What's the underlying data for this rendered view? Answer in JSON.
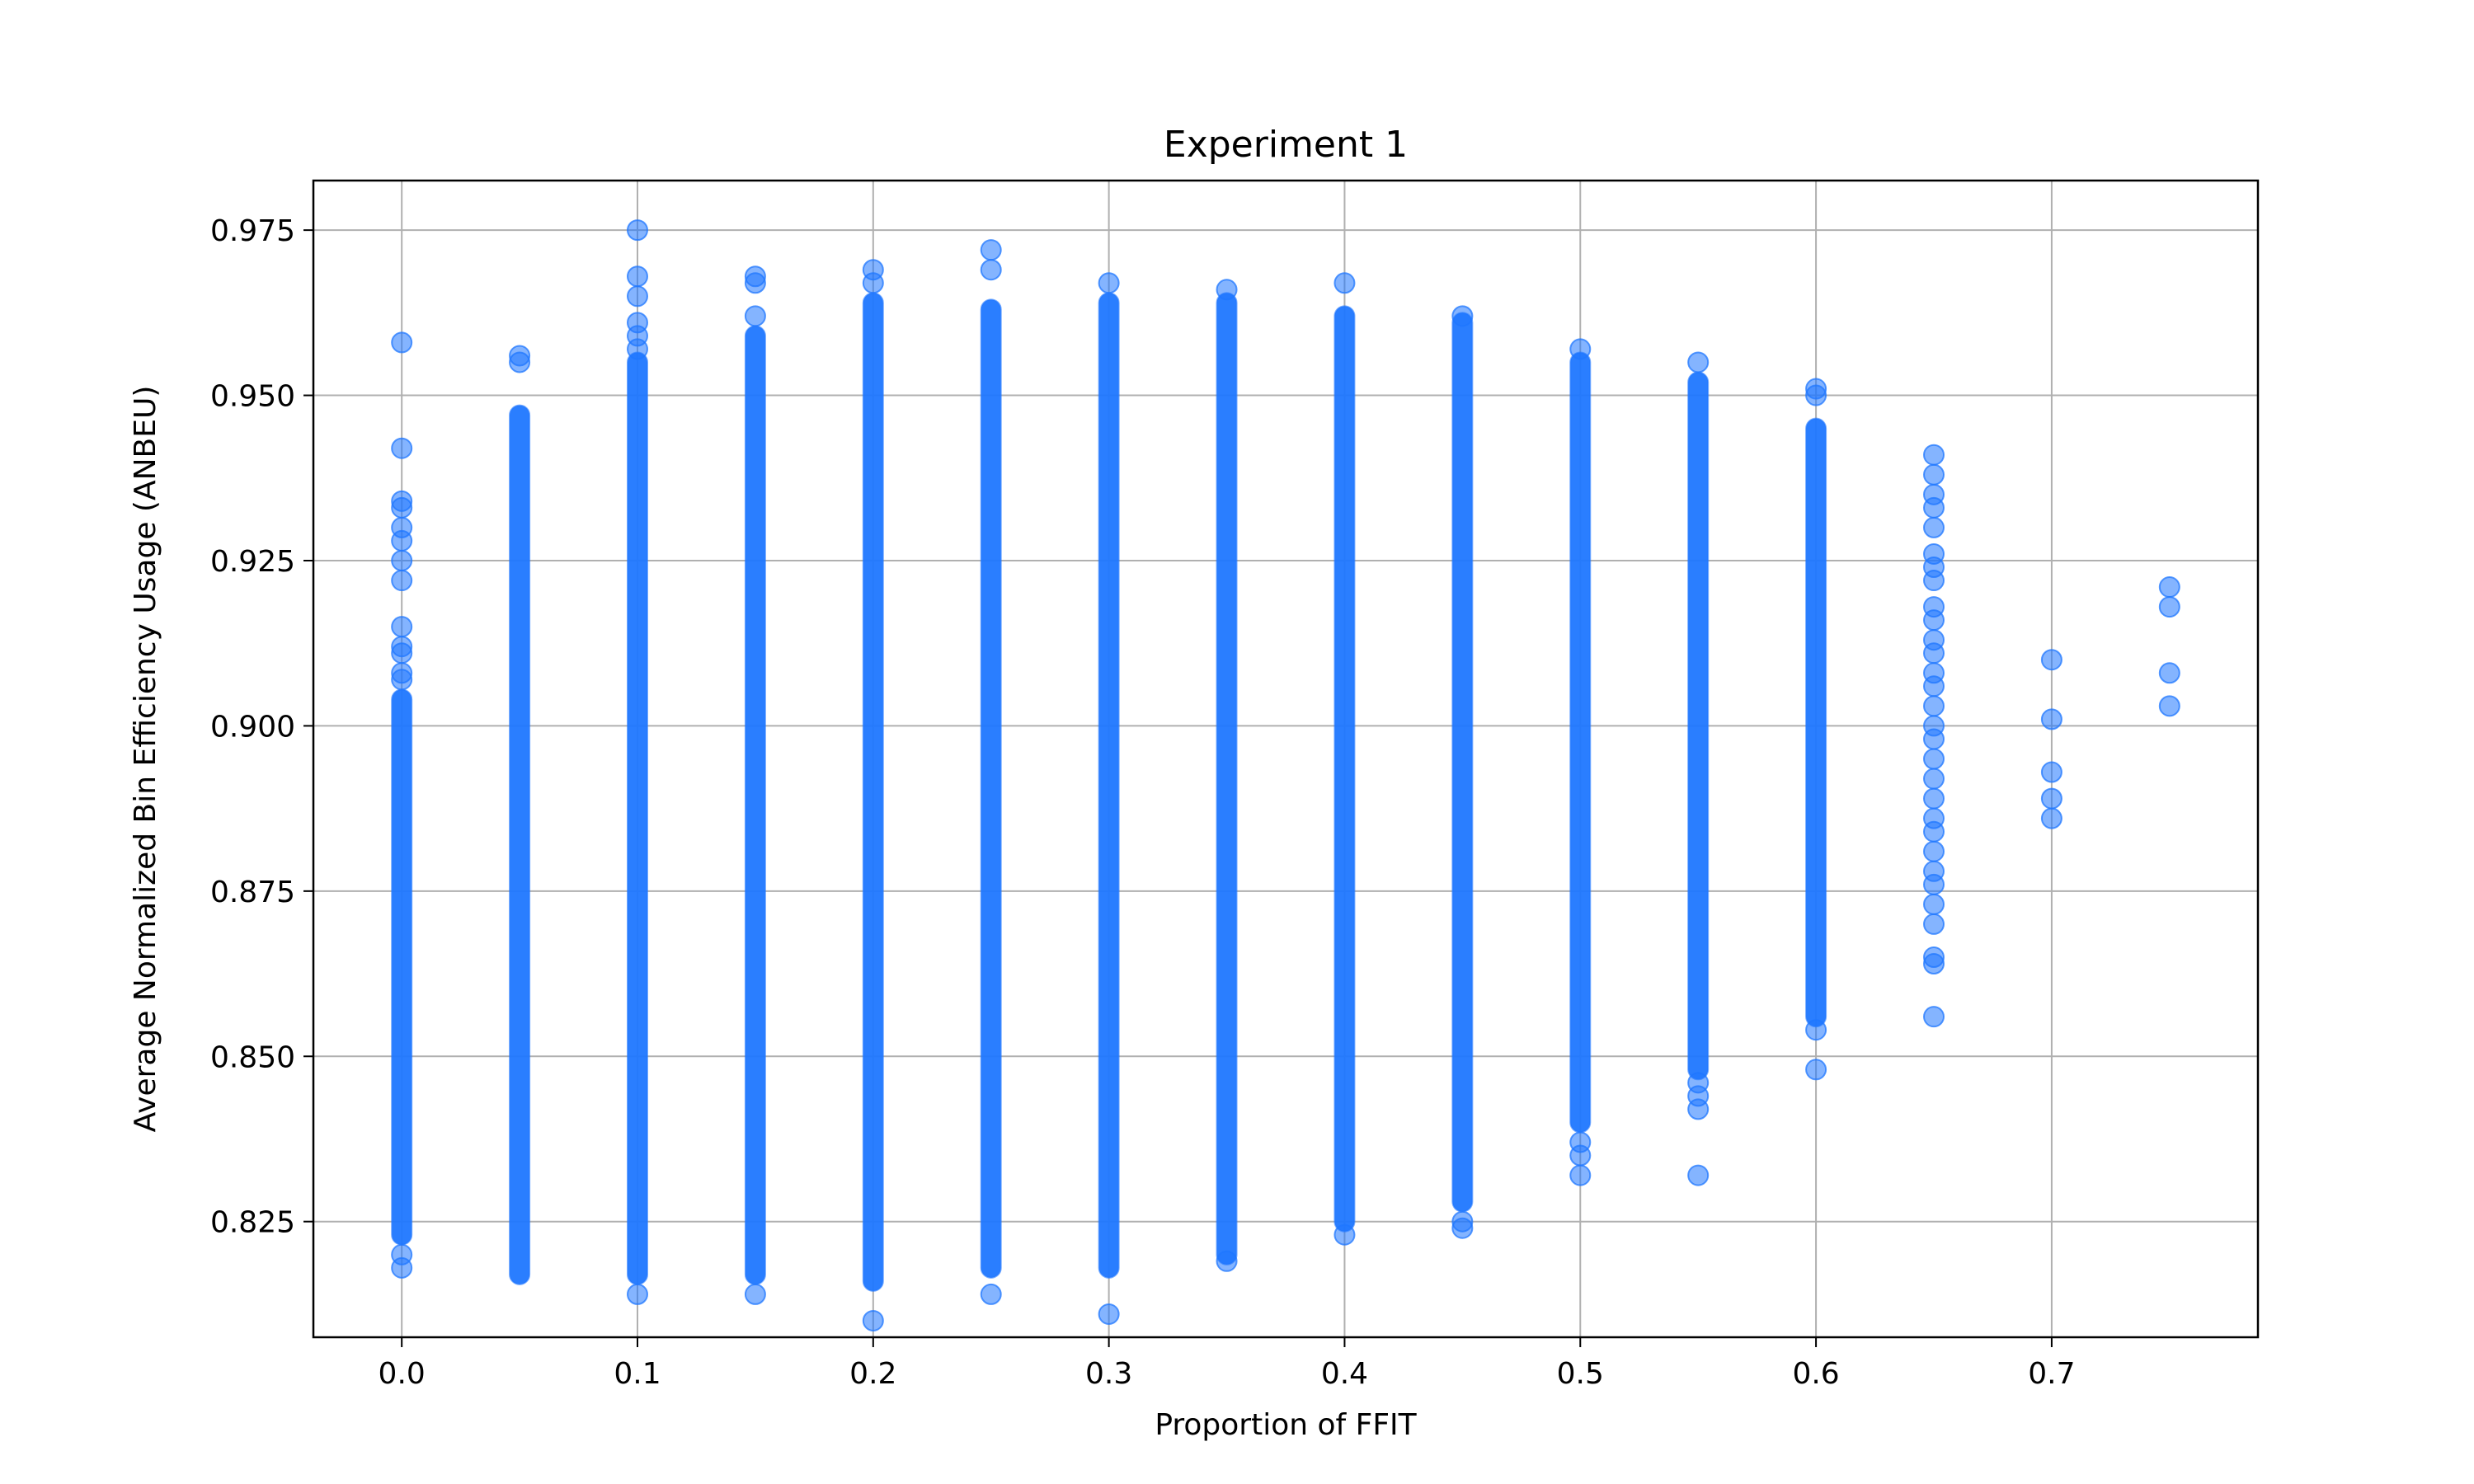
{
  "chart_data": {
    "type": "scatter",
    "title": "Experiment 1",
    "xlabel": "Proportion of FFIT",
    "ylabel": "Average Normalized Bin Efficiency Usage (ANBEU)",
    "xlim": [
      -0.0375,
      0.7875
    ],
    "ylim": [
      0.8075,
      0.9825
    ],
    "xticks": [
      "0.0",
      "0.1",
      "0.2",
      "0.3",
      "0.4",
      "0.5",
      "0.6",
      "0.7"
    ],
    "xtick_values": [
      0.0,
      0.1,
      0.2,
      0.3,
      0.4,
      0.5,
      0.6,
      0.7
    ],
    "yticks": [
      "0.825",
      "0.850",
      "0.875",
      "0.900",
      "0.925",
      "0.950",
      "0.975"
    ],
    "ytick_values": [
      0.825,
      0.85,
      0.875,
      0.9,
      0.925,
      0.95,
      0.975
    ],
    "grid": true,
    "marker_color": "#1f77ff",
    "marker_alpha": 0.55,
    "columns": [
      {
        "x": 0.0,
        "range": [
          0.823,
          0.904
        ],
        "points": [
          0.958,
          0.942,
          0.934,
          0.933,
          0.93,
          0.928,
          0.925,
          0.922,
          0.915,
          0.912,
          0.911,
          0.908,
          0.907,
          0.82,
          0.818
        ]
      },
      {
        "x": 0.05,
        "range": [
          0.817,
          0.947
        ],
        "points": [
          0.956,
          0.955
        ]
      },
      {
        "x": 0.1,
        "range": [
          0.817,
          0.955
        ],
        "points": [
          0.975,
          0.968,
          0.965,
          0.961,
          0.959,
          0.957,
          0.814
        ]
      },
      {
        "x": 0.15,
        "range": [
          0.817,
          0.959
        ],
        "points": [
          0.968,
          0.967,
          0.962,
          0.814
        ]
      },
      {
        "x": 0.2,
        "range": [
          0.816,
          0.964
        ],
        "points": [
          0.969,
          0.967,
          0.81
        ]
      },
      {
        "x": 0.25,
        "range": [
          0.818,
          0.963
        ],
        "points": [
          0.972,
          0.969,
          0.814
        ]
      },
      {
        "x": 0.3,
        "range": [
          0.818,
          0.964
        ],
        "points": [
          0.967,
          0.811
        ]
      },
      {
        "x": 0.35,
        "range": [
          0.82,
          0.964
        ],
        "points": [
          0.966,
          0.819
        ]
      },
      {
        "x": 0.4,
        "range": [
          0.825,
          0.962
        ],
        "points": [
          0.967,
          0.823
        ]
      },
      {
        "x": 0.45,
        "range": [
          0.828,
          0.961
        ],
        "points": [
          0.962,
          0.825,
          0.824
        ]
      },
      {
        "x": 0.5,
        "range": [
          0.84,
          0.955
        ],
        "points": [
          0.957,
          0.837,
          0.835,
          0.832
        ]
      },
      {
        "x": 0.55,
        "range": [
          0.848,
          0.952
        ],
        "points": [
          0.955,
          0.846,
          0.844,
          0.842,
          0.832
        ]
      },
      {
        "x": 0.6,
        "range": [
          0.856,
          0.945
        ],
        "points": [
          0.951,
          0.95,
          0.854,
          0.848
        ]
      },
      {
        "x": 0.65,
        "range": null,
        "points": [
          0.941,
          0.938,
          0.935,
          0.933,
          0.93,
          0.926,
          0.924,
          0.922,
          0.918,
          0.916,
          0.913,
          0.911,
          0.908,
          0.906,
          0.903,
          0.9,
          0.898,
          0.895,
          0.892,
          0.889,
          0.886,
          0.884,
          0.881,
          0.878,
          0.876,
          0.873,
          0.87,
          0.865,
          0.864,
          0.856
        ]
      },
      {
        "x": 0.7,
        "range": null,
        "points": [
          0.91,
          0.901,
          0.893,
          0.889,
          0.886
        ]
      },
      {
        "x": 0.75,
        "range": null,
        "points": [
          0.921,
          0.918,
          0.908,
          0.903
        ]
      }
    ]
  }
}
